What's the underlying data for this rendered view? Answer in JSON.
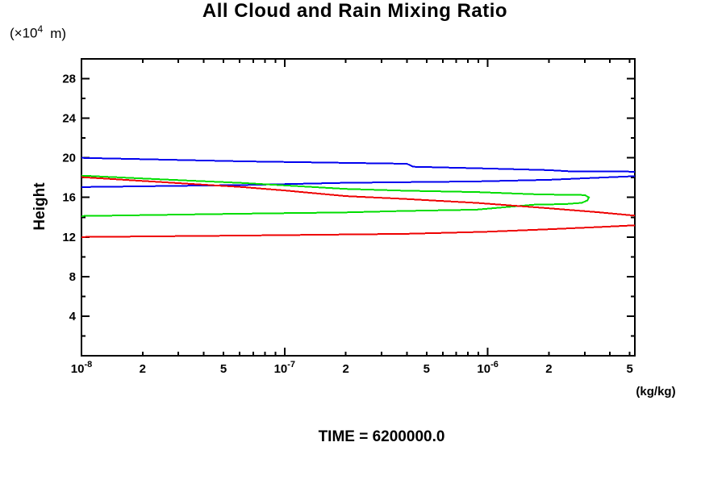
{
  "header": {
    "title": "All Cloud and Rain Mixing Ratio"
  },
  "labels": {
    "y_unit_prefix": "(×10",
    "y_unit_exp": "4",
    "y_unit_suffix": "m)",
    "y_axis_title": "Height",
    "x_unit": "(kg/kg)",
    "time": "TIME = 6200000.0"
  },
  "chart_data": {
    "type": "line",
    "title": "All Cloud and Rain Mixing Ratio",
    "xlabel": "(kg/kg)",
    "ylabel": "Height (×10⁴ m)",
    "x_scale": "log",
    "xlim": [
      1e-08,
      5.3e-06
    ],
    "ylim": [
      0,
      30
    ],
    "grid": false,
    "legend": "none",
    "x_ticks": [
      {
        "v": 1e-08,
        "major": true,
        "base": "10",
        "exp": "-8"
      },
      {
        "v": 2e-08,
        "label": "2"
      },
      {
        "v": 3e-08
      },
      {
        "v": 4e-08
      },
      {
        "v": 5e-08,
        "label": "5"
      },
      {
        "v": 6e-08
      },
      {
        "v": 7e-08
      },
      {
        "v": 8e-08
      },
      {
        "v": 9e-08
      },
      {
        "v": 1e-07,
        "major": true,
        "base": "10",
        "exp": "-7"
      },
      {
        "v": 2e-07,
        "label": "2"
      },
      {
        "v": 3e-07
      },
      {
        "v": 4e-07
      },
      {
        "v": 5e-07,
        "label": "5"
      },
      {
        "v": 6e-07
      },
      {
        "v": 7e-07
      },
      {
        "v": 8e-07
      },
      {
        "v": 9e-07
      },
      {
        "v": 1e-06,
        "major": true,
        "base": "10",
        "exp": "-6"
      },
      {
        "v": 2e-06,
        "label": "2"
      },
      {
        "v": 3e-06
      },
      {
        "v": 4e-06
      },
      {
        "v": 5e-06,
        "label": "5"
      }
    ],
    "y_ticks": [
      {
        "v": 2
      },
      {
        "v": 4,
        "label": "4"
      },
      {
        "v": 6
      },
      {
        "v": 8,
        "label": "8"
      },
      {
        "v": 10
      },
      {
        "v": 12,
        "label": "12"
      },
      {
        "v": 14
      },
      {
        "v": 16,
        "label": "16"
      },
      {
        "v": 18
      },
      {
        "v": 20,
        "label": "20"
      },
      {
        "v": 22
      },
      {
        "v": 24,
        "label": "24"
      },
      {
        "v": 26
      },
      {
        "v": 28,
        "label": "28"
      }
    ],
    "series": [
      {
        "name": "blue-profile-upper-branch",
        "color": "#0000ee",
        "points": [
          [
            1e-08,
            20.0
          ],
          [
            6.2e-08,
            19.65
          ],
          [
            4e-07,
            19.4
          ],
          [
            4.3e-07,
            19.1
          ],
          [
            9.6e-07,
            18.93
          ],
          [
            2e-06,
            18.76
          ],
          [
            2.5e-06,
            18.64
          ],
          [
            5.3e-06,
            18.6
          ]
        ]
      },
      {
        "name": "blue-profile-lower-branch",
        "color": "#0000ee",
        "points": [
          [
            1e-08,
            17.05
          ],
          [
            6.2e-08,
            17.25
          ],
          [
            2e-07,
            17.48
          ],
          [
            8.8e-07,
            17.62
          ],
          [
            2e-06,
            17.78
          ],
          [
            3.5e-06,
            17.99
          ],
          [
            5.3e-06,
            18.15
          ]
        ]
      },
      {
        "name": "green-profile-loop",
        "color": "#00dd00",
        "points": [
          [
            1e-08,
            18.2
          ],
          [
            2.5e-08,
            17.82
          ],
          [
            6.2e-08,
            17.46
          ],
          [
            2e-07,
            16.86
          ],
          [
            3.9e-07,
            16.68
          ],
          [
            8.8e-07,
            16.54
          ],
          [
            1.7e-06,
            16.32
          ],
          [
            2.4e-06,
            16.26
          ],
          [
            3e-06,
            16.24
          ],
          [
            3.15e-06,
            16.0
          ],
          [
            3.1e-06,
            15.7
          ],
          [
            2.9e-06,
            15.45
          ],
          [
            2.4e-06,
            15.33
          ],
          [
            1.7e-06,
            15.27
          ],
          [
            8.8e-07,
            14.76
          ],
          [
            3.9e-07,
            14.63
          ],
          [
            2e-07,
            14.49
          ],
          [
            6.2e-08,
            14.36
          ],
          [
            1e-08,
            14.12
          ]
        ]
      },
      {
        "name": "red-profile-upper-branch",
        "color": "#ee0000",
        "points": [
          [
            1e-08,
            18.05
          ],
          [
            2.5e-08,
            17.54
          ],
          [
            6.2e-08,
            17.05
          ],
          [
            1e-07,
            16.7
          ],
          [
            2e-07,
            16.13
          ],
          [
            3.9e-07,
            15.85
          ],
          [
            8.8e-07,
            15.45
          ],
          [
            2e-06,
            14.9
          ],
          [
            3.5e-06,
            14.5
          ],
          [
            5.3e-06,
            14.16
          ]
        ]
      },
      {
        "name": "red-profile-lower-branch",
        "color": "#ee0000",
        "points": [
          [
            1e-08,
            12.0
          ],
          [
            6.2e-08,
            12.15
          ],
          [
            3.9e-07,
            12.32
          ],
          [
            9.6e-07,
            12.52
          ],
          [
            2e-06,
            12.78
          ],
          [
            3.5e-06,
            13.0
          ],
          [
            5.3e-06,
            13.18
          ]
        ]
      }
    ]
  }
}
